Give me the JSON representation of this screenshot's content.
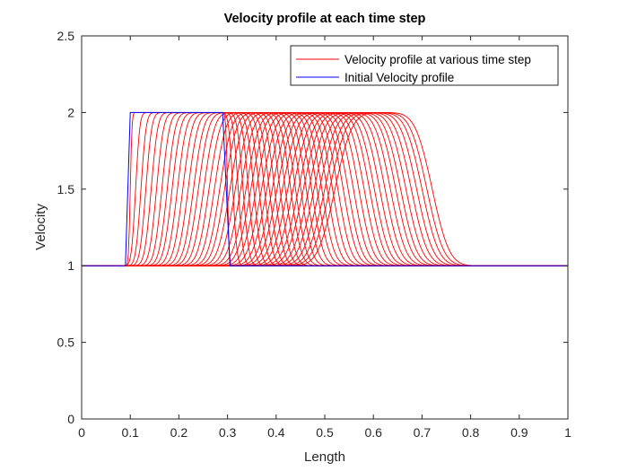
{
  "chart_data": {
    "type": "line",
    "title": "Velocity profile at each time step",
    "xlabel": "Length",
    "ylabel": "Velocity",
    "xlim": [
      0,
      1
    ],
    "ylim": [
      0,
      2.5
    ],
    "xticks": [
      "0",
      "0.1",
      "0.2",
      "0.3",
      "0.4",
      "0.5",
      "0.6",
      "0.7",
      "0.8",
      "0.9",
      "1"
    ],
    "yticks": [
      "0",
      "0.5",
      "1",
      "1.5",
      "2",
      "2.5"
    ],
    "grid": false,
    "legend_position": "top-right",
    "legend": [
      "Velocity profile at various time step",
      "Initial Velocity profile"
    ],
    "series": [
      {
        "name": "Initial Velocity profile",
        "color": "#0000ff",
        "x": [
          0,
          0.09,
          0.1,
          0.29,
          0.305,
          1
        ],
        "y": [
          1,
          1,
          2,
          2,
          1,
          1
        ]
      },
      {
        "name": "Velocity profile at various time step",
        "color": "#ff0000",
        "baseline": 1,
        "peak": 2,
        "profiles": [
          [
            0.1,
            0.3,
            0.004
          ],
          [
            0.111,
            0.311,
            0.0096
          ],
          [
            0.122,
            0.322,
            0.0119
          ],
          [
            0.132,
            0.332,
            0.0137
          ],
          [
            0.143,
            0.343,
            0.0152
          ],
          [
            0.154,
            0.354,
            0.0165
          ],
          [
            0.165,
            0.365,
            0.0177
          ],
          [
            0.176,
            0.376,
            0.0188
          ],
          [
            0.186,
            0.386,
            0.0199
          ],
          [
            0.197,
            0.397,
            0.0208
          ],
          [
            0.208,
            0.408,
            0.0217
          ],
          [
            0.219,
            0.419,
            0.0226
          ],
          [
            0.23,
            0.43,
            0.0234
          ],
          [
            0.24,
            0.44,
            0.0242
          ],
          [
            0.251,
            0.451,
            0.025
          ],
          [
            0.262,
            0.462,
            0.0257
          ],
          [
            0.273,
            0.473,
            0.0264
          ],
          [
            0.284,
            0.484,
            0.0271
          ],
          [
            0.294,
            0.494,
            0.0278
          ],
          [
            0.305,
            0.505,
            0.0284
          ],
          [
            0.316,
            0.516,
            0.0291
          ],
          [
            0.327,
            0.527,
            0.0297
          ],
          [
            0.338,
            0.538,
            0.0303
          ],
          [
            0.348,
            0.548,
            0.0309
          ],
          [
            0.359,
            0.559,
            0.0315
          ],
          [
            0.37,
            0.57,
            0.032
          ],
          [
            0.381,
            0.581,
            0.0326
          ],
          [
            0.392,
            0.592,
            0.0331
          ],
          [
            0.402,
            0.602,
            0.0337
          ],
          [
            0.413,
            0.613,
            0.0342
          ],
          [
            0.424,
            0.624,
            0.0347
          ],
          [
            0.435,
            0.635,
            0.0352
          ],
          [
            0.446,
            0.646,
            0.0357
          ],
          [
            0.456,
            0.656,
            0.0362
          ],
          [
            0.467,
            0.667,
            0.0367
          ],
          [
            0.478,
            0.678,
            0.0372
          ],
          [
            0.489,
            0.689,
            0.0376
          ],
          [
            0.5,
            0.7,
            0.0381
          ],
          [
            0.51,
            0.71,
            0.0385
          ],
          [
            0.521,
            0.721,
            0.039
          ]
        ],
        "profile_fields": [
          "pulse_start",
          "pulse_end",
          "edge_spread"
        ]
      }
    ]
  }
}
